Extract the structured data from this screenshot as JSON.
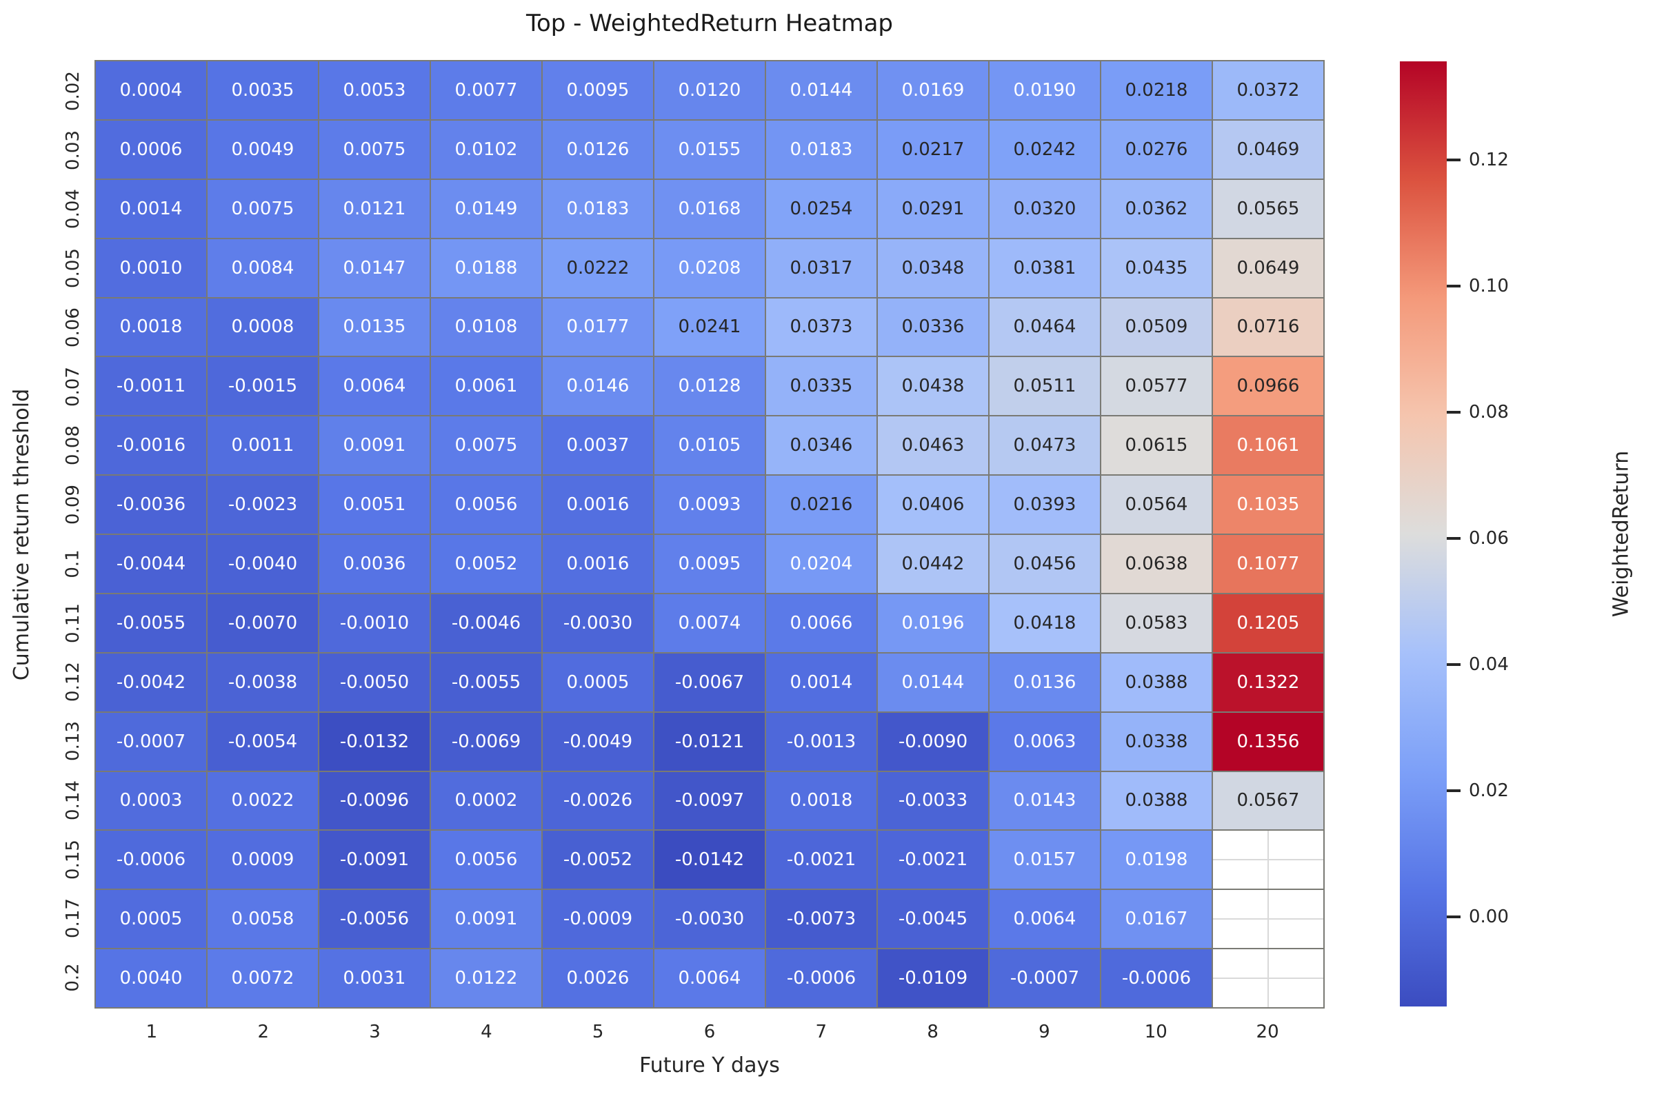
{
  "chart_data": {
    "type": "heatmap",
    "title": "Top - WeightedReturn Heatmap",
    "xlabel": "Future Y days",
    "ylabel": "Cumulative return threshold",
    "x_categories": [
      "1",
      "2",
      "3",
      "4",
      "5",
      "6",
      "7",
      "8",
      "9",
      "10",
      "20"
    ],
    "y_categories": [
      "0.02",
      "0.03",
      "0.04",
      "0.05",
      "0.06",
      "0.07",
      "0.08",
      "0.09",
      "0.1",
      "0.11",
      "0.12",
      "0.13",
      "0.14",
      "0.15",
      "0.17",
      "0.2"
    ],
    "values": [
      [
        0.0004,
        0.0035,
        0.0053,
        0.0077,
        0.0095,
        0.012,
        0.0144,
        0.0169,
        0.019,
        0.0218,
        0.0372
      ],
      [
        0.0006,
        0.0049,
        0.0075,
        0.0102,
        0.0126,
        0.0155,
        0.0183,
        0.0217,
        0.0242,
        0.0276,
        0.0469
      ],
      [
        0.0014,
        0.0075,
        0.0121,
        0.0149,
        0.0183,
        0.0168,
        0.0254,
        0.0291,
        0.032,
        0.0362,
        0.0565
      ],
      [
        0.001,
        0.0084,
        0.0147,
        0.0188,
        0.0222,
        0.0208,
        0.0317,
        0.0348,
        0.0381,
        0.0435,
        0.0649
      ],
      [
        0.0018,
        0.0008,
        0.0135,
        0.0108,
        0.0177,
        0.0241,
        0.0373,
        0.0336,
        0.0464,
        0.0509,
        0.0716
      ],
      [
        -0.0011,
        -0.0015,
        0.0064,
        0.0061,
        0.0146,
        0.0128,
        0.0335,
        0.0438,
        0.0511,
        0.0577,
        0.0966
      ],
      [
        -0.0016,
        0.0011,
        0.0091,
        0.0075,
        0.0037,
        0.0105,
        0.0346,
        0.0463,
        0.0473,
        0.0615,
        0.1061
      ],
      [
        -0.0036,
        -0.0023,
        0.0051,
        0.0056,
        0.0016,
        0.0093,
        0.0216,
        0.0406,
        0.0393,
        0.0564,
        0.1035
      ],
      [
        -0.0044,
        -0.004,
        0.0036,
        0.0052,
        0.0016,
        0.0095,
        0.0204,
        0.0442,
        0.0456,
        0.0638,
        0.1077
      ],
      [
        -0.0055,
        -0.007,
        -0.001,
        -0.0046,
        -0.003,
        0.0074,
        0.0066,
        0.0196,
        0.0418,
        0.0583,
        0.1205
      ],
      [
        -0.0042,
        -0.0038,
        -0.005,
        -0.0055,
        0.0005,
        -0.0067,
        0.0014,
        0.0144,
        0.0136,
        0.0388,
        0.1322
      ],
      [
        -0.0007,
        -0.0054,
        -0.0132,
        -0.0069,
        -0.0049,
        -0.0121,
        -0.0013,
        -0.009,
        0.0063,
        0.0338,
        0.1356
      ],
      [
        0.0003,
        0.0022,
        -0.0096,
        0.0002,
        -0.0026,
        -0.0097,
        0.0018,
        -0.0033,
        0.0143,
        0.0388,
        0.0567
      ],
      [
        -0.0006,
        0.0009,
        -0.0091,
        0.0056,
        -0.0052,
        -0.0142,
        -0.0021,
        -0.0021,
        0.0157,
        0.0198,
        null
      ],
      [
        0.0005,
        0.0058,
        -0.0056,
        0.0091,
        -0.0009,
        -0.003,
        -0.0073,
        -0.0045,
        0.0064,
        0.0167,
        null
      ],
      [
        0.004,
        0.0072,
        0.0031,
        0.0122,
        0.0026,
        0.0064,
        -0.0006,
        -0.0109,
        -0.0007,
        -0.0006,
        null
      ]
    ],
    "value_format_decimals": 4,
    "vmin": -0.0142,
    "vmax": 0.1356,
    "colormap": "coolwarm",
    "grid_line_color": "#7a7a74",
    "nan_cell_color": "#ffffff"
  },
  "colorbar": {
    "label": "WeightedReturn",
    "ticks": [
      {
        "label": "0.12",
        "value": 0.12
      },
      {
        "label": "0.10",
        "value": 0.1
      },
      {
        "label": "0.08",
        "value": 0.08
      },
      {
        "label": "0.06",
        "value": 0.06
      },
      {
        "label": "0.04",
        "value": 0.04
      },
      {
        "label": "0.02",
        "value": 0.02
      },
      {
        "label": "0.00",
        "value": 0.0
      }
    ],
    "top_color": "#b40426",
    "mid_color": "#dddddc",
    "bottom_color": "#3b4cc0"
  }
}
